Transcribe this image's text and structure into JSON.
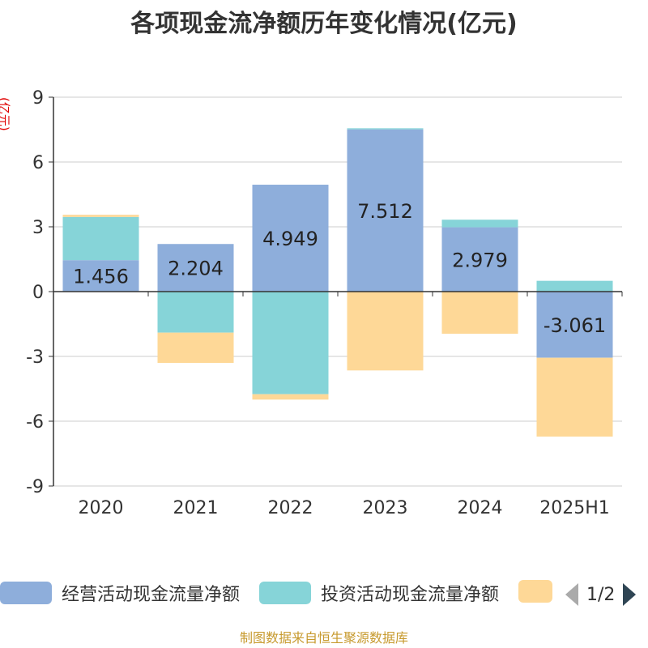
{
  "title": "各项现金流净额历年变化情况(亿元)",
  "unit": "(亿元)",
  "source": "制图数据来自恒生聚源数据库",
  "pager": {
    "text": "1/2"
  },
  "colors": {
    "operating": "#8eaedb",
    "investing": "#86d4d8",
    "financing": "#fed897",
    "grid": "#cccccc",
    "axis": "#333333"
  },
  "legend": [
    {
      "label": "经营活动现金流量净额",
      "color": "#8eaedb"
    },
    {
      "label": "投资活动现金流量净额",
      "color": "#86d4d8"
    },
    {
      "label": "",
      "color": "#fed897"
    }
  ],
  "chart_data": {
    "type": "bar",
    "stacked": true,
    "categories": [
      "2020",
      "2021",
      "2022",
      "2023",
      "2024",
      "2025H1"
    ],
    "ylim": [
      -9,
      9
    ],
    "yticks": [
      -9,
      -6,
      -3,
      0,
      3,
      6,
      9
    ],
    "grid": true,
    "legend_position": "bottom",
    "series": [
      {
        "name": "经营活动现金流量净额",
        "values": [
          1.456,
          2.204,
          4.949,
          7.512,
          2.979,
          -3.061
        ],
        "labels": [
          "1.456",
          "2.204",
          "4.949",
          "7.512",
          "2.979",
          "-3.061"
        ]
      },
      {
        "name": "投资活动现金流量净额",
        "values": [
          2.0,
          -1.9,
          -4.75,
          0.05,
          0.35,
          0.5
        ]
      },
      {
        "name": "",
        "values": [
          0.1,
          -1.4,
          -0.25,
          -3.65,
          -1.95,
          -3.65
        ]
      }
    ]
  }
}
